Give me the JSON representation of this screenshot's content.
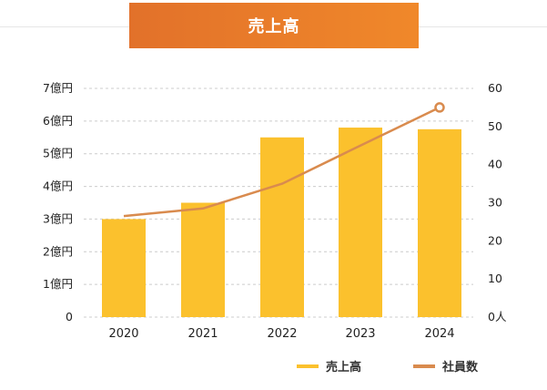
{
  "title": "売上高",
  "colors": {
    "bar": "#fbc12d",
    "line": "#d98b4e",
    "banner_start": "#e2712a",
    "banner_end": "#f0882a",
    "grid": "#cccccc"
  },
  "legend": {
    "bar_label": "売上高",
    "line_label": "社員数"
  },
  "chart_data": {
    "type": "bar",
    "categories": [
      "2020",
      "2021",
      "2022",
      "2023",
      "2024"
    ],
    "series": [
      {
        "name": "売上高",
        "type": "bar",
        "axis": "left",
        "values": [
          3.0,
          3.5,
          5.5,
          5.8,
          5.75
        ]
      },
      {
        "name": "社員数",
        "type": "line",
        "axis": "right",
        "values": [
          26.5,
          28.5,
          35,
          45,
          55
        ]
      }
    ],
    "y_left": {
      "ylim": [
        0,
        7
      ],
      "ticks": [
        "0",
        "1億円",
        "2億円",
        "3億円",
        "4億円",
        "5億円",
        "6億円",
        "7億円"
      ]
    },
    "y_right": {
      "ylim": [
        0,
        60
      ],
      "ticks": [
        "0人",
        "10",
        "20",
        "30",
        "40",
        "50",
        "60"
      ]
    },
    "grid": true,
    "legend_position": "bottom-right"
  }
}
